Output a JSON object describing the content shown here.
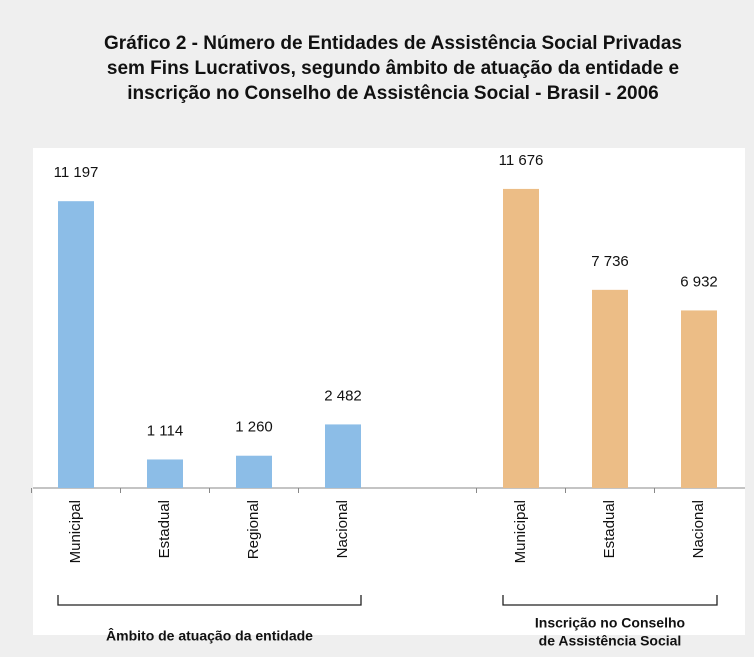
{
  "chart_data": {
    "type": "bar",
    "title": [
      "Gráfico 2 - Número de Entidades de Assistência Social Privadas",
      "sem Fins Lucrativos, segundo âmbito de atuação da entidade e",
      "inscrição no Conselho de Assistência Social - Brasil - 2006"
    ],
    "ylim": [
      0,
      13000
    ],
    "groups": [
      {
        "name": [
          "Âmbito de atuação da entidade"
        ],
        "color": "#8cbde7",
        "categories": [
          "Municipal",
          "Estadual",
          "Regional",
          "Nacional"
        ],
        "values": [
          11197,
          1114,
          1260,
          2482
        ],
        "value_labels": [
          "11 197",
          "1 114",
          "1 260",
          "2 482"
        ]
      },
      {
        "name": [
          "Inscrição no Conselho",
          "de Assistência Social"
        ],
        "color": "#ecbd86",
        "categories": [
          "Municipal",
          "Estadual",
          "Nacional"
        ],
        "values": [
          11676,
          7736,
          6932
        ],
        "value_labels": [
          "11 676",
          "7 736",
          "6 932"
        ]
      }
    ]
  }
}
